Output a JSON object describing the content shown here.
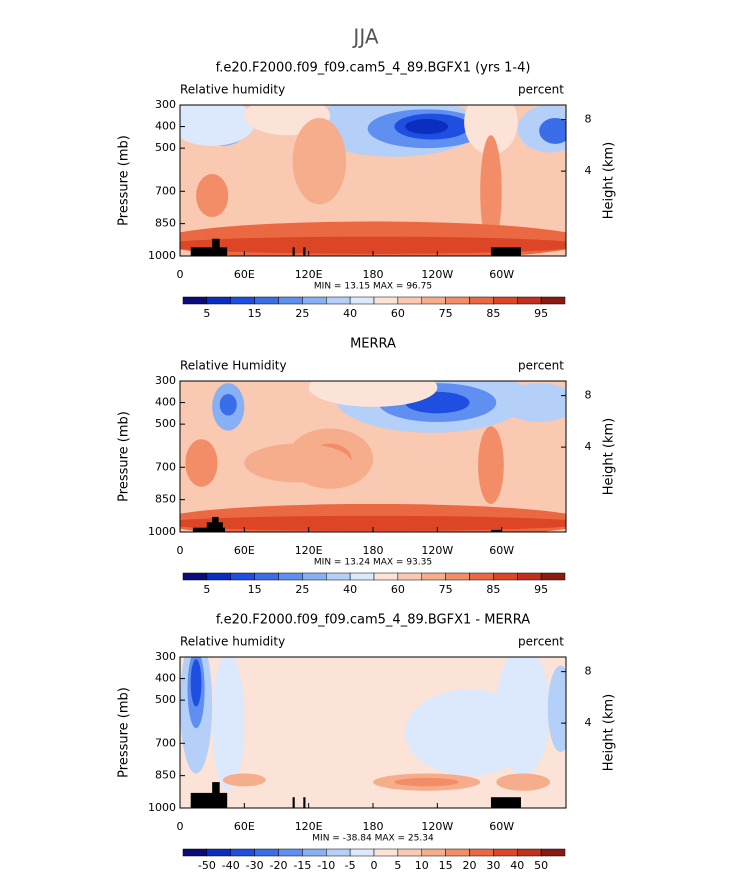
{
  "title": "JJA",
  "chart_data": [
    {
      "type": "contour",
      "title": "f.e20.F2000.f09_f09.cam5_4_89.BGFX1 (yrs 1-4)",
      "left_label": "Relative humidity",
      "right_label": "percent",
      "ylabel": "Pressure (mb)",
      "y2label": "Height (km)",
      "xlim": [
        0,
        360
      ],
      "xticks": [
        0,
        {
          "value": 60,
          "label": "60E"
        },
        {
          "value": 120,
          "label": "120E"
        },
        180,
        {
          "value": 240,
          "label": "120W"
        },
        {
          "value": 300,
          "label": "60W"
        }
      ],
      "ylim": [
        1000,
        300
      ],
      "yticks": [
        300,
        400,
        500,
        700,
        850,
        1000
      ],
      "y2ticks": [
        8,
        4
      ],
      "stats": "MIN =  13.15   MAX =  96.75",
      "colorbar": {
        "ticks": [
          5,
          15,
          25,
          40,
          60,
          75,
          85,
          95
        ],
        "colors": [
          "#0b0b7a",
          "#0a2fc0",
          "#1e4fe0",
          "#3a6ee8",
          "#5f8ff0",
          "#88b0f5",
          "#b4cff8",
          "#dce8fb",
          "#fbe3d7",
          "#f9c9b1",
          "#f6ad8c",
          "#f28d67",
          "#ea6842",
          "#dc4526",
          "#c0301c",
          "#8b1a12"
        ]
      }
    },
    {
      "type": "contour",
      "title": "MERRA",
      "left_label": "Relative Humidity",
      "right_label": "percent",
      "ylabel": "Pressure (mb)",
      "y2label": "Height (km)",
      "xlim": [
        0,
        360
      ],
      "xticks": [
        0,
        {
          "value": 60,
          "label": "60E"
        },
        {
          "value": 120,
          "label": "120E"
        },
        180,
        {
          "value": 240,
          "label": "120W"
        },
        {
          "value": 300,
          "label": "60W"
        }
      ],
      "ylim": [
        1000,
        300
      ],
      "yticks": [
        300,
        400,
        500,
        700,
        850,
        1000
      ],
      "y2ticks": [
        8,
        4
      ],
      "stats": "MIN =  13.24   MAX =  93.35",
      "colorbar": {
        "ticks": [
          5,
          15,
          25,
          40,
          60,
          75,
          85,
          95
        ],
        "colors": [
          "#0b0b7a",
          "#0a2fc0",
          "#1e4fe0",
          "#3a6ee8",
          "#5f8ff0",
          "#88b0f5",
          "#b4cff8",
          "#dce8fb",
          "#fbe3d7",
          "#f9c9b1",
          "#f6ad8c",
          "#f28d67",
          "#ea6842",
          "#dc4526",
          "#c0301c",
          "#8b1a12"
        ]
      }
    },
    {
      "type": "contour",
      "title": "f.e20.F2000.f09_f09.cam5_4_89.BGFX1 - MERRA",
      "left_label": "Relative humidity",
      "right_label": "percent",
      "ylabel": "Pressure (mb)",
      "y2label": "Height (km)",
      "xlim": [
        0,
        360
      ],
      "xticks": [
        0,
        {
          "value": 60,
          "label": "60E"
        },
        {
          "value": 120,
          "label": "120E"
        },
        180,
        {
          "value": 240,
          "label": "120W"
        },
        {
          "value": 300,
          "label": "60W"
        }
      ],
      "ylim": [
        1000,
        300
      ],
      "yticks": [
        300,
        400,
        500,
        700,
        850,
        1000
      ],
      "y2ticks": [
        8,
        4
      ],
      "stats": "MIN = -38.84   MAX =  25.34",
      "colorbar": {
        "ticks": [
          -50,
          -40,
          -30,
          -20,
          -15,
          -10,
          -5,
          0,
          5,
          10,
          15,
          20,
          30,
          40,
          50
        ],
        "colors": [
          "#0b0b7a",
          "#0a2fc0",
          "#1e4fe0",
          "#3a6ee8",
          "#5f8ff0",
          "#88b0f5",
          "#b4cff8",
          "#dce8fb",
          "#fbe3d7",
          "#f9c9b1",
          "#f6ad8c",
          "#f28d67",
          "#ea6842",
          "#dc4526",
          "#c0301c",
          "#8b1a12"
        ]
      }
    }
  ]
}
